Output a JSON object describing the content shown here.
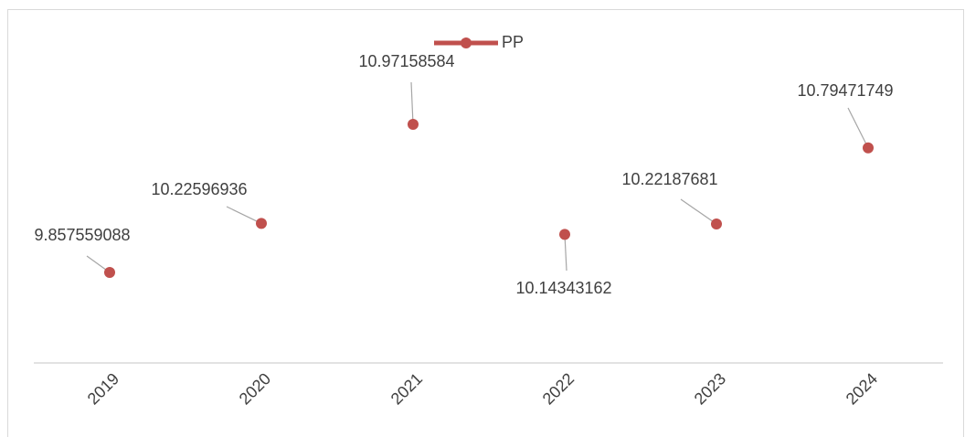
{
  "chart_data": {
    "type": "line",
    "categories": [
      "2019",
      "2020",
      "2021",
      "2022",
      "2023",
      "2024"
    ],
    "series": [
      {
        "name": "PP",
        "color": "#c0504d",
        "values": [
          9.857559088,
          10.22596936,
          10.97158584,
          10.14343162,
          10.22187681,
          10.79471749
        ]
      }
    ],
    "legend": "top"
  }
}
